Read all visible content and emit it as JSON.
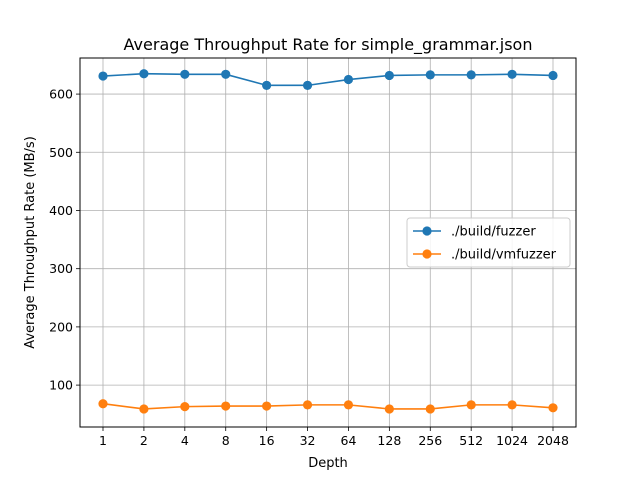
{
  "chart_data": {
    "type": "line",
    "title": "Average Throughput Rate for simple_grammar.json",
    "xlabel": "Depth",
    "ylabel": "Average Throughput Rate (MB/s)",
    "categories": [
      "1",
      "2",
      "4",
      "8",
      "16",
      "32",
      "64",
      "128",
      "256",
      "512",
      "1024",
      "2048"
    ],
    "yticks": [
      100,
      200,
      300,
      400,
      500,
      600
    ],
    "ylim": [
      28,
      662
    ],
    "grid": true,
    "legend_position": "center-right",
    "series": [
      {
        "name": "./build/fuzzer",
        "color": "#1f77b4",
        "values": [
          631,
          635,
          634,
          634,
          615,
          615,
          625,
          632,
          633,
          633,
          634,
          632
        ]
      },
      {
        "name": "./build/vmfuzzer",
        "color": "#ff7f0e",
        "values": [
          68,
          59,
          63,
          64,
          64,
          66,
          66,
          59,
          59,
          66,
          66,
          61
        ]
      }
    ]
  }
}
